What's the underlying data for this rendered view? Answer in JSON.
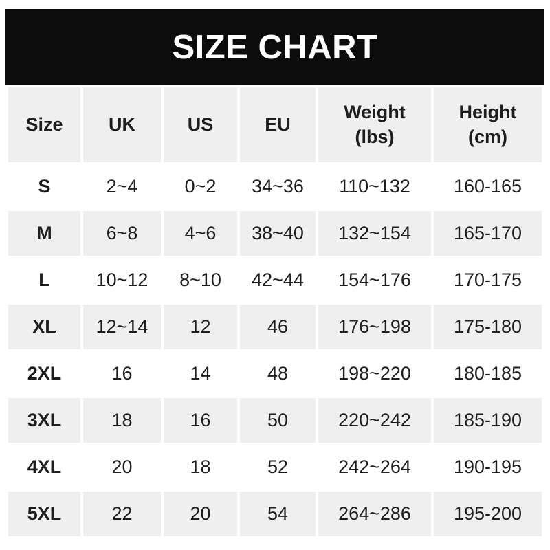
{
  "title": "SIZE CHART",
  "colors": {
    "title_bar_bg": "#0c0c0c",
    "title_text": "#ffffff",
    "cell_bg": "#ffffff",
    "cell_alt_bg": "#efefef",
    "text": "#1e1e1e"
  },
  "chart_data": {
    "type": "table",
    "title": "SIZE CHART",
    "columns": [
      "Size",
      "UK",
      "US",
      "EU",
      "Weight (lbs)",
      "Height (cm)"
    ],
    "header_lines": [
      [
        "Size"
      ],
      [
        "UK"
      ],
      [
        "US"
      ],
      [
        "EU"
      ],
      [
        "Weight",
        "(lbs)"
      ],
      [
        "Height",
        "(cm)"
      ]
    ],
    "rows": [
      [
        "S",
        "2~4",
        "0~2",
        "34~36",
        "110~132",
        "160-165"
      ],
      [
        "M",
        "6~8",
        "4~6",
        "38~40",
        "132~154",
        "165-170"
      ],
      [
        "L",
        "10~12",
        "8~10",
        "42~44",
        "154~176",
        "170-175"
      ],
      [
        "XL",
        "12~14",
        "12",
        "46",
        "176~198",
        "175-180"
      ],
      [
        "2XL",
        "16",
        "14",
        "48",
        "198~220",
        "180-185"
      ],
      [
        "3XL",
        "18",
        "16",
        "50",
        "220~242",
        "185-190"
      ],
      [
        "4XL",
        "20",
        "18",
        "52",
        "242~264",
        "190-195"
      ],
      [
        "5XL",
        "22",
        "20",
        "54",
        "264~286",
        "195-200"
      ]
    ],
    "layout": {
      "striping": "header gray; data rows alternate white/gray starting white",
      "grid": "thin white gutters between all cells",
      "legend_position": "none"
    }
  }
}
